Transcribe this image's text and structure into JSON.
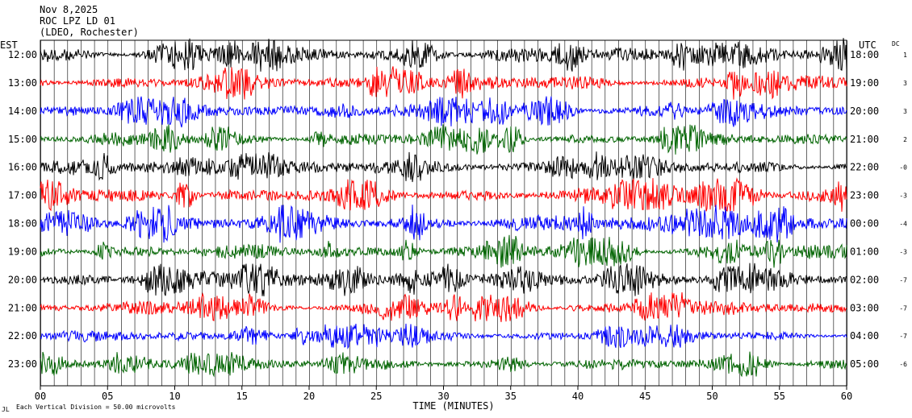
{
  "header": {
    "date": "Nov 8,2025",
    "station": "ROC LPZ LD 01",
    "network": "(LDEO, Rochester)"
  },
  "chart_data": {
    "type": "line",
    "title": "ROC LPZ LD 01",
    "xlabel": "TIME (MINUTES)",
    "left_axis_label": "EST",
    "right_axis_label": "UTC",
    "dc_label": "DC",
    "xlim": [
      0,
      60
    ],
    "x_ticks": [
      "00",
      "05",
      "10",
      "15",
      "20",
      "25",
      "30",
      "35",
      "40",
      "45",
      "50",
      "55",
      "60"
    ],
    "grid": "vertical lines every minute",
    "scale_note": "Each Vertical Division =   50.00 microvolts",
    "corner_mark": "JL",
    "trace_colors": [
      "#000000",
      "#ff0000",
      "#0000ff",
      "#006400"
    ],
    "traces": [
      {
        "est": "12:00",
        "utc": "18:00",
        "dc": "1",
        "color": "#000000",
        "amp": 0.85
      },
      {
        "est": "13:00",
        "utc": "19:00",
        "dc": "3",
        "color": "#ff0000",
        "amp": 0.8
      },
      {
        "est": "14:00",
        "utc": "20:00",
        "dc": "3",
        "color": "#0000ff",
        "amp": 0.8
      },
      {
        "est": "15:00",
        "utc": "21:00",
        "dc": "2",
        "color": "#006400",
        "amp": 0.75
      },
      {
        "est": "16:00",
        "utc": "22:00",
        "dc": "-0",
        "color": "#000000",
        "amp": 0.8
      },
      {
        "est": "17:00",
        "utc": "23:00",
        "dc": "-3",
        "color": "#ff0000",
        "amp": 0.85
      },
      {
        "est": "18:00",
        "utc": "00:00",
        "dc": "-4",
        "color": "#0000ff",
        "amp": 0.95
      },
      {
        "est": "19:00",
        "utc": "01:00",
        "dc": "-3",
        "color": "#006400",
        "amp": 0.8
      },
      {
        "est": "20:00",
        "utc": "02:00",
        "dc": "-7",
        "color": "#000000",
        "amp": 0.8
      },
      {
        "est": "21:00",
        "utc": "03:00",
        "dc": "-7",
        "color": "#ff0000",
        "amp": 0.75
      },
      {
        "est": "22:00",
        "utc": "04:00",
        "dc": "-7",
        "color": "#0000ff",
        "amp": 0.6
      },
      {
        "est": "23:00",
        "utc": "05:00",
        "dc": "-6",
        "color": "#006400",
        "amp": 0.6
      }
    ]
  }
}
